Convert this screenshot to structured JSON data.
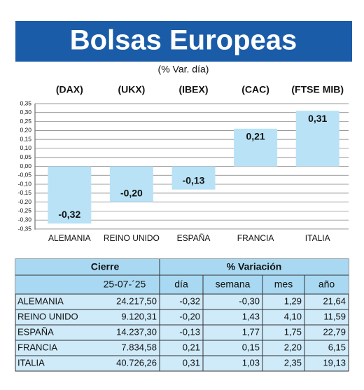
{
  "chart_data": {
    "type": "bar",
    "title": "Bolsas Europeas",
    "subtitle": "(% Var. día)",
    "tickers": [
      "(DAX)",
      "(UKX)",
      "(IBEX)",
      "(CAC)",
      "(FTSE MIB)"
    ],
    "categories": [
      "ALEMANIA",
      "REINO UNIDO",
      "ESPAÑA",
      "FRANCIA",
      "ITALIA"
    ],
    "values": [
      -0.32,
      -0.2,
      -0.13,
      0.21,
      0.31
    ],
    "value_labels": [
      "-0,32",
      "-0,20",
      "-0,13",
      "0,21",
      "0,31"
    ],
    "color": "#b9e2f6",
    "ylim": [
      -0.35,
      0.35
    ],
    "yticks": [
      {
        "value": 0.35,
        "label": "0,35"
      },
      {
        "value": 0.3,
        "label": "0,30"
      },
      {
        "value": 0.25,
        "label": "0,25"
      },
      {
        "value": 0.2,
        "label": "0,20"
      },
      {
        "value": 0.15,
        "label": "0,15"
      },
      {
        "value": 0.1,
        "label": "0,10"
      },
      {
        "value": 0.05,
        "label": "0,05"
      },
      {
        "value": 0.0,
        "label": "0,00"
      },
      {
        "value": -0.05,
        "label": "-0,05"
      },
      {
        "value": -0.1,
        "label": "-0,10"
      },
      {
        "value": -0.15,
        "label": "-0,15"
      },
      {
        "value": -0.2,
        "label": "-0,20"
      },
      {
        "value": -0.25,
        "label": "-0,25"
      },
      {
        "value": -0.3,
        "label": "-0,30"
      },
      {
        "value": -0.35,
        "label": "-0,35"
      }
    ],
    "grid": true
  },
  "table": {
    "headers": [
      "Cierre",
      "% Variación"
    ],
    "subheaders": [
      "25-07-´25",
      "día",
      "semana",
      "mes",
      "año"
    ],
    "rows": [
      [
        "ALEMANIA",
        "24.217,50",
        "-0,32",
        "-0,30",
        "1,29",
        "21,64"
      ],
      [
        "REINO UNIDO",
        "9.120,31",
        "-0,20",
        "1,43",
        "4,10",
        "11,59"
      ],
      [
        "ESPAÑA",
        "14.237,30",
        "-0,13",
        "1,77",
        "1,75",
        "22,79"
      ],
      [
        "FRANCIA",
        "7.834,58",
        "0,21",
        "0,15",
        "2,20",
        "6,15"
      ],
      [
        "ITALIA",
        "40.726,26",
        "0,31",
        "1,03",
        "2,35",
        "19,13"
      ]
    ]
  }
}
